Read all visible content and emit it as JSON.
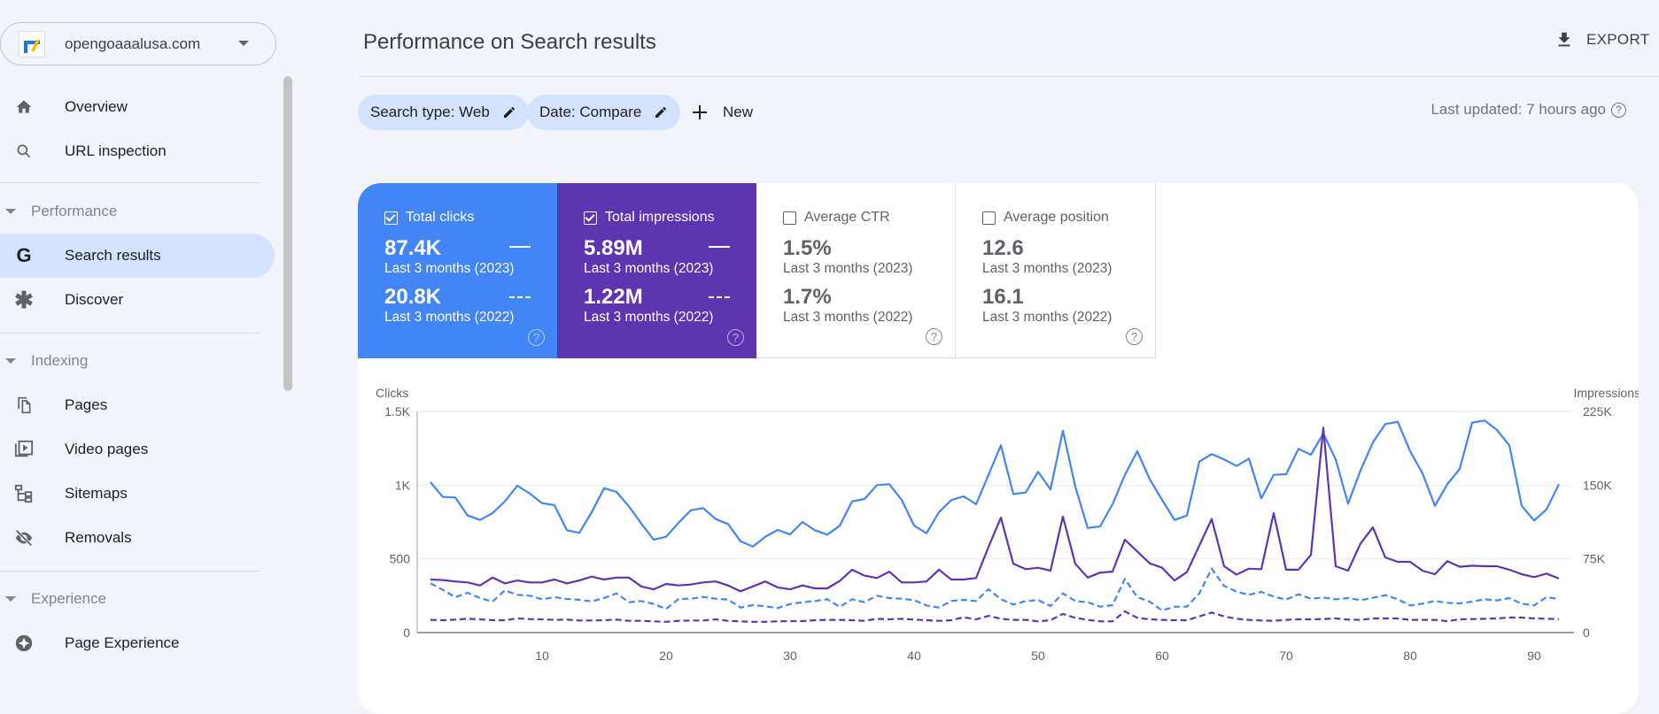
{
  "property": {
    "name": "opengoaaalusa.com"
  },
  "sidebar": {
    "items_top": [
      {
        "label": "Overview",
        "icon": "home-icon"
      },
      {
        "label": "URL inspection",
        "icon": "search-icon"
      }
    ],
    "performance": {
      "label": "Performance",
      "items": [
        {
          "label": "Search results",
          "icon": "google-g-icon",
          "active": true
        },
        {
          "label": "Discover",
          "icon": "asterisk-icon"
        }
      ]
    },
    "indexing": {
      "label": "Indexing",
      "items": [
        {
          "label": "Pages",
          "icon": "pages-icon"
        },
        {
          "label": "Video pages",
          "icon": "video-pages-icon"
        },
        {
          "label": "Sitemaps",
          "icon": "sitemap-icon"
        },
        {
          "label": "Removals",
          "icon": "eye-off-icon"
        }
      ]
    },
    "experience": {
      "label": "Experience",
      "items": [
        {
          "label": "Page Experience",
          "icon": "page-experience-icon"
        }
      ]
    }
  },
  "header": {
    "title": "Performance on Search results",
    "export_label": "EXPORT"
  },
  "filters": {
    "chips": [
      "Search type: Web",
      "Date: Compare"
    ],
    "new_label": "New",
    "last_updated": "Last updated: 7 hours ago"
  },
  "metrics": [
    {
      "label": "Total clicks",
      "checked": true,
      "value_a": "87.4K",
      "period_a": "Last 3 months (2023)",
      "value_b": "20.8K",
      "period_b": "Last 3 months (2022)",
      "color": "#4285f4"
    },
    {
      "label": "Total impressions",
      "checked": true,
      "value_a": "5.89M",
      "period_a": "Last 3 months (2023)",
      "value_b": "1.22M",
      "period_b": "Last 3 months (2022)",
      "color": "#5e35b1"
    },
    {
      "label": "Average CTR",
      "checked": false,
      "value_a": "1.5%",
      "period_a": "Last 3 months (2023)",
      "value_b": "1.7%",
      "period_b": "Last 3 months (2022)"
    },
    {
      "label": "Average position",
      "checked": false,
      "value_a": "12.6",
      "period_a": "Last 3 months (2023)",
      "value_b": "16.1",
      "period_b": "Last 3 months (2022)"
    }
  ],
  "chart_data": {
    "type": "line",
    "ylabel": "Clicks",
    "y2label": "Impressions",
    "ylim": [
      0,
      1500
    ],
    "y2lim": [
      0,
      225000
    ],
    "yticks": [
      "0",
      "500",
      "1K",
      "1.5K"
    ],
    "y2ticks": [
      "0",
      "75K",
      "150K",
      "225K"
    ],
    "xlim": [
      1,
      92
    ],
    "xticks": [
      10,
      20,
      30,
      40,
      50,
      60,
      70,
      80,
      90
    ],
    "grid": true,
    "series": [
      {
        "axis": "left",
        "color": "#4285f4",
        "style": "solid",
        "values": [
          1020,
          920,
          916,
          794,
          764,
          810,
          890,
          996,
          944,
          878,
          864,
          694,
          676,
          816,
          980,
          954,
          856,
          740,
          630,
          650,
          744,
          830,
          844,
          770,
          736,
          620,
          584,
          650,
          696,
          666,
          750,
          694,
          664,
          724,
          890,
          906,
          1000,
          1006,
          900,
          726,
          674,
          816,
          898,
          924,
          870,
          1070,
          1270,
          940,
          950,
          1090,
          970,
          1370,
          990,
          710,
          720,
          870,
          1070,
          1230,
          1040,
          900,
          764,
          794,
          1160,
          1210,
          1174,
          1130,
          1180,
          910,
          1070,
          1074,
          1246,
          1206,
          1350,
          1174,
          874,
          1100,
          1290,
          1414,
          1430,
          1230,
          1080,
          860,
          1006,
          1110,
          1424,
          1438,
          1374,
          1270,
          860,
          760,
          836,
          1006
        ]
      },
      {
        "axis": "right",
        "color": "#5e35b1",
        "style": "solid",
        "values": [
          54000,
          53400,
          52000,
          51000,
          48000,
          56000,
          50000,
          53000,
          51000,
          51000,
          54000,
          50000,
          53000,
          57000,
          54000,
          56000,
          56000,
          47000,
          44000,
          49500,
          48000,
          49000,
          51000,
          52000,
          48000,
          42000,
          47000,
          52000,
          46000,
          44000,
          48000,
          45000,
          45000,
          52500,
          64000,
          58000,
          55500,
          62000,
          51000,
          51000,
          52000,
          64000,
          54000,
          54000,
          55500,
          87000,
          117000,
          70000,
          64500,
          66000,
          63000,
          118000,
          70000,
          56000,
          61000,
          62000,
          94500,
          82500,
          70500,
          66000,
          53000,
          61500,
          88500,
          115500,
          67500,
          59000,
          65000,
          64500,
          121500,
          64000,
          64000,
          79000,
          208500,
          67500,
          63000,
          90600,
          107000,
          76500,
          72000,
          72000,
          63000,
          59400,
          72600,
          67000,
          68000,
          67500,
          67500,
          64000,
          59400,
          56400,
          60000,
          55000
        ]
      },
      {
        "axis": "left",
        "color": "#4285f4",
        "style": "dashed",
        "values": [
          334,
          290,
          240,
          270,
          234,
          210,
          286,
          256,
          250,
          226,
          240,
          228,
          222,
          212,
          234,
          266,
          206,
          214,
          194,
          160,
          228,
          230,
          242,
          230,
          224,
          170,
          186,
          178,
          166,
          194,
          206,
          214,
          226,
          174,
          226,
          206,
          250,
          234,
          230,
          220,
          184,
          170,
          214,
          222,
          214,
          294,
          226,
          190,
          214,
          220,
          180,
          266,
          214,
          206,
          176,
          186,
          364,
          240,
          210,
          150,
          176,
          176,
          266,
          434,
          316,
          278,
          256,
          276,
          244,
          224,
          260,
          230,
          238,
          226,
          234,
          220,
          236,
          254,
          226,
          184,
          196,
          214,
          202,
          198,
          210,
          226,
          218,
          234,
          196,
          184,
          240,
          228
        ]
      },
      {
        "axis": "right",
        "color": "#5e35b1",
        "style": "dashed",
        "values": [
          13000,
          12600,
          13200,
          14000,
          13500,
          12600,
          12600,
          14400,
          13800,
          13500,
          13000,
          13200,
          12300,
          12300,
          12600,
          13200,
          12000,
          12000,
          11400,
          11000,
          12000,
          12300,
          12300,
          13500,
          12000,
          11400,
          11000,
          11000,
          11400,
          11700,
          11700,
          12600,
          13000,
          13000,
          12600,
          12000,
          14000,
          13500,
          14000,
          13200,
          12600,
          12000,
          12600,
          15600,
          13500,
          17000,
          14000,
          13000,
          13000,
          11400,
          12600,
          19000,
          15000,
          13000,
          11400,
          11400,
          21600,
          15000,
          13500,
          13000,
          12600,
          12600,
          16500,
          20400,
          16500,
          14000,
          13000,
          12300,
          12000,
          13000,
          13500,
          13500,
          13800,
          14400,
          13200,
          13000,
          14400,
          14400,
          14400,
          13000,
          13000,
          13000,
          11700,
          13500,
          13800,
          14000,
          14400,
          15300,
          15300,
          14400,
          14000,
          13800
        ]
      }
    ]
  }
}
